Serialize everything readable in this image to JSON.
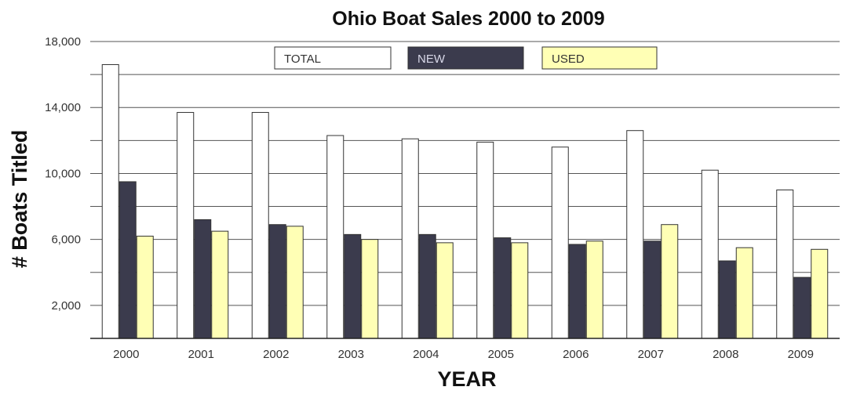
{
  "chart_data": {
    "type": "bar",
    "title": "Ohio Boat Sales 2000 to 2009",
    "xlabel": "YEAR",
    "ylabel": "# Boats Titled",
    "categories": [
      "2000",
      "2001",
      "2002",
      "2003",
      "2004",
      "2005",
      "2006",
      "2007",
      "2008",
      "2009"
    ],
    "series": [
      {
        "name": "TOTAL",
        "color": "#ffffff",
        "values": [
          16600,
          13700,
          13700,
          12300,
          12100,
          11900,
          11600,
          12600,
          10200,
          9000
        ]
      },
      {
        "name": "NEW",
        "color": "#3b3b4d",
        "values": [
          9500,
          7200,
          6900,
          6300,
          6300,
          6100,
          5700,
          5900,
          4700,
          3700
        ]
      },
      {
        "name": "USED",
        "color": "#ffffb5",
        "values": [
          6200,
          6500,
          6800,
          6000,
          5800,
          5800,
          5900,
          6900,
          5500,
          5400
        ]
      }
    ],
    "ylim": [
      0,
      18000
    ],
    "yticks": [
      "2,000",
      "6,000",
      "10,000",
      "14,000",
      "18,000"
    ],
    "ytick_values": [
      2000,
      6000,
      10000,
      14000,
      18000
    ],
    "gridlines_every": 2000,
    "grid": true,
    "legend_position": "top-center"
  }
}
